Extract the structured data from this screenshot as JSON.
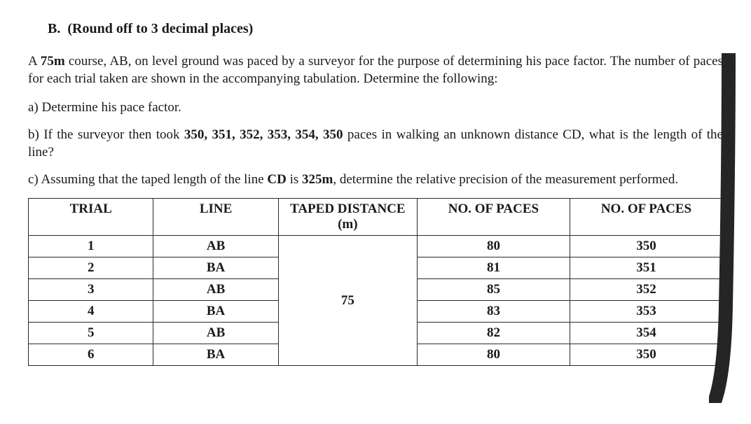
{
  "section": {
    "label": "B.",
    "instruction": "(Round off to 3 decimal places)"
  },
  "intro": {
    "pre": "A ",
    "course": "75m",
    "post": " course, AB, on level ground was paced by a surveyor for the purpose of determining his pace factor. The number of paces for each trial taken are shown in the accompanying tabulation. Determine the following:"
  },
  "qa": {
    "text": "a) Determine his pace factor."
  },
  "qb": {
    "pre": "b) If the surveyor then took ",
    "paces": "350, 351, 352, 353, 354, 350",
    "post": " paces in walking an unknown distance CD, what is the length of the line?"
  },
  "qc": {
    "pre": "c) Assuming that the taped length of the line ",
    "line": "CD",
    "mid": " is ",
    "dist": "325m",
    "post": ", determine the relative precision of the measurement performed."
  },
  "table": {
    "headers": {
      "trial": "TRIAL",
      "line": "LINE",
      "taped": "TAPED DISTANCE (m)",
      "paces1": "NO. OF PACES",
      "paces2": "NO. OF PACES"
    },
    "taped_value": "75",
    "rows": [
      {
        "trial": "1",
        "line": "AB",
        "p1": "80",
        "p2": "350"
      },
      {
        "trial": "2",
        "line": "BA",
        "p1": "81",
        "p2": "351"
      },
      {
        "trial": "3",
        "line": "AB",
        "p1": "85",
        "p2": "352"
      },
      {
        "trial": "4",
        "line": "BA",
        "p1": "83",
        "p2": "353"
      },
      {
        "trial": "5",
        "line": "AB",
        "p1": "82",
        "p2": "354"
      },
      {
        "trial": "6",
        "line": "BA",
        "p1": "80",
        "p2": "350"
      }
    ],
    "col_widths": [
      "18%",
      "18%",
      "20%",
      "22%",
      "22%"
    ],
    "border_color": "#2a2a2a"
  },
  "overlay": {
    "stroke_color": "#252525",
    "stroke_width": 20
  }
}
